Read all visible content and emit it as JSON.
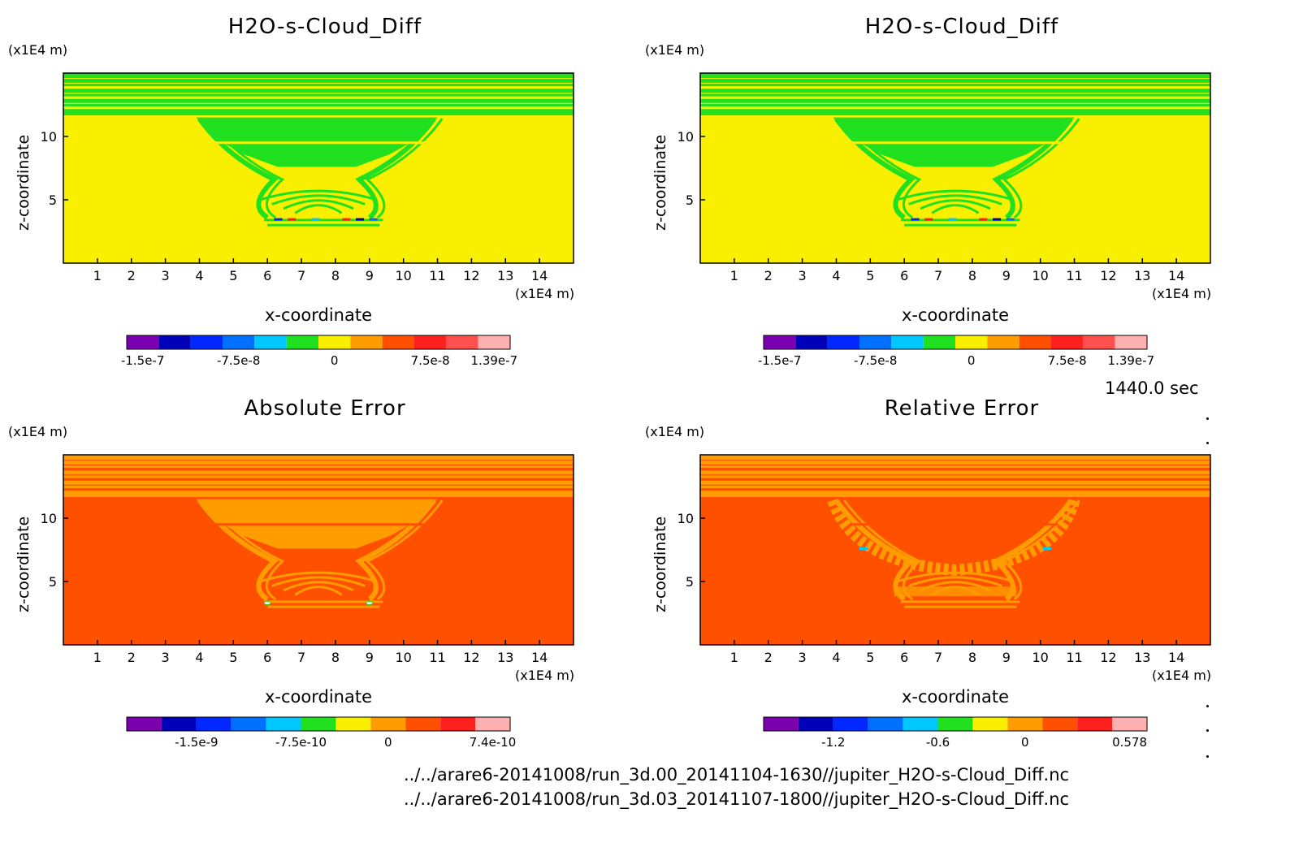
{
  "chart_data": [
    {
      "type": "heatmap",
      "title": "H2O-s-Cloud_Diff",
      "xlabel": "x-coordinate",
      "ylabel": "z-coordinate",
      "x_unit": "(x1E4 m)",
      "y_unit": "(x1E4 m)",
      "xlim": [
        0,
        15
      ],
      "ylim": [
        0,
        15
      ],
      "x_ticks": [
        1,
        2,
        3,
        4,
        5,
        6,
        7,
        8,
        9,
        10,
        11,
        12,
        13,
        14
      ],
      "y_ticks": [
        5,
        10
      ],
      "pattern": "cloud",
      "colorbar": {
        "colors": [
          "#7a00b0",
          "#0000b8",
          "#0028ff",
          "#0070ff",
          "#00c8ff",
          "#20e020",
          "#f8f000",
          "#ff9c00",
          "#ff5000",
          "#ff2020",
          "#ff5050",
          "#ffb0b0"
        ],
        "tick_labels": [
          "-1.5e-7",
          "-7.5e-8",
          "0",
          "7.5e-8",
          "1.39e-7"
        ],
        "label_slots": [
          0.5,
          3.5,
          6.5,
          9.5,
          11.5
        ]
      }
    },
    {
      "type": "heatmap",
      "title": "H2O-s-Cloud_Diff",
      "xlabel": "x-coordinate",
      "ylabel": "z-coordinate",
      "x_unit": "(x1E4 m)",
      "y_unit": "(x1E4 m)",
      "xlim": [
        0,
        15
      ],
      "ylim": [
        0,
        15
      ],
      "x_ticks": [
        1,
        2,
        3,
        4,
        5,
        6,
        7,
        8,
        9,
        10,
        11,
        12,
        13,
        14
      ],
      "y_ticks": [
        5,
        10
      ],
      "pattern": "cloud",
      "colorbar": {
        "colors": [
          "#7a00b0",
          "#0000b8",
          "#0028ff",
          "#0070ff",
          "#00c8ff",
          "#20e020",
          "#f8f000",
          "#ff9c00",
          "#ff5000",
          "#ff2020",
          "#ff5050",
          "#ffb0b0"
        ],
        "tick_labels": [
          "-1.5e-7",
          "-7.5e-8",
          "0",
          "7.5e-8",
          "1.39e-7"
        ],
        "label_slots": [
          0.5,
          3.5,
          6.5,
          9.5,
          11.5
        ]
      }
    },
    {
      "type": "heatmap",
      "title": "Absolute Error",
      "xlabel": "x-coordinate",
      "ylabel": "z-coordinate",
      "x_unit": "(x1E4 m)",
      "y_unit": "(x1E4 m)",
      "xlim": [
        0,
        15
      ],
      "ylim": [
        0,
        15
      ],
      "x_ticks": [
        1,
        2,
        3,
        4,
        5,
        6,
        7,
        8,
        9,
        10,
        11,
        12,
        13,
        14
      ],
      "y_ticks": [
        5,
        10
      ],
      "pattern": "abs",
      "colorbar": {
        "colors": [
          "#7a00b0",
          "#0000b8",
          "#0028ff",
          "#0070ff",
          "#00c8ff",
          "#20e020",
          "#f8f000",
          "#ff9c00",
          "#ff5000",
          "#ff2020",
          "#ffb0b0"
        ],
        "tick_labels": [
          "-1.5e-9",
          "-7.5e-10",
          "0",
          "7.4e-10"
        ],
        "label_slots": [
          2,
          5,
          7.5,
          10.5
        ]
      }
    },
    {
      "type": "heatmap",
      "title": "Relative Error",
      "xlabel": "x-coordinate",
      "ylabel": "z-coordinate",
      "x_unit": "(x1E4 m)",
      "y_unit": "(x1E4 m)",
      "xlim": [
        0,
        15
      ],
      "ylim": [
        0,
        15
      ],
      "x_ticks": [
        1,
        2,
        3,
        4,
        5,
        6,
        7,
        8,
        9,
        10,
        11,
        12,
        13,
        14
      ],
      "y_ticks": [
        5,
        10
      ],
      "pattern": "rel",
      "colorbar": {
        "colors": [
          "#7a00b0",
          "#0000b8",
          "#0028ff",
          "#0070ff",
          "#00c8ff",
          "#20e020",
          "#f8f000",
          "#ff9c00",
          "#ff5000",
          "#ff2020",
          "#ffb0b0"
        ],
        "tick_labels": [
          "-1.2",
          "-0.6",
          "0",
          "0.578"
        ],
        "label_slots": [
          2,
          5,
          7.5,
          10.5
        ]
      }
    }
  ],
  "time_label": "1440.0 sec",
  "file_paths": [
    "../../arare6-20141008/run_3d.00_20141104-1630//jupiter_H2O-s-Cloud_Diff.nc",
    "../../arare6-20141008/run_3d.03_20141107-1800//jupiter_H2O-s-Cloud_Diff.nc"
  ]
}
